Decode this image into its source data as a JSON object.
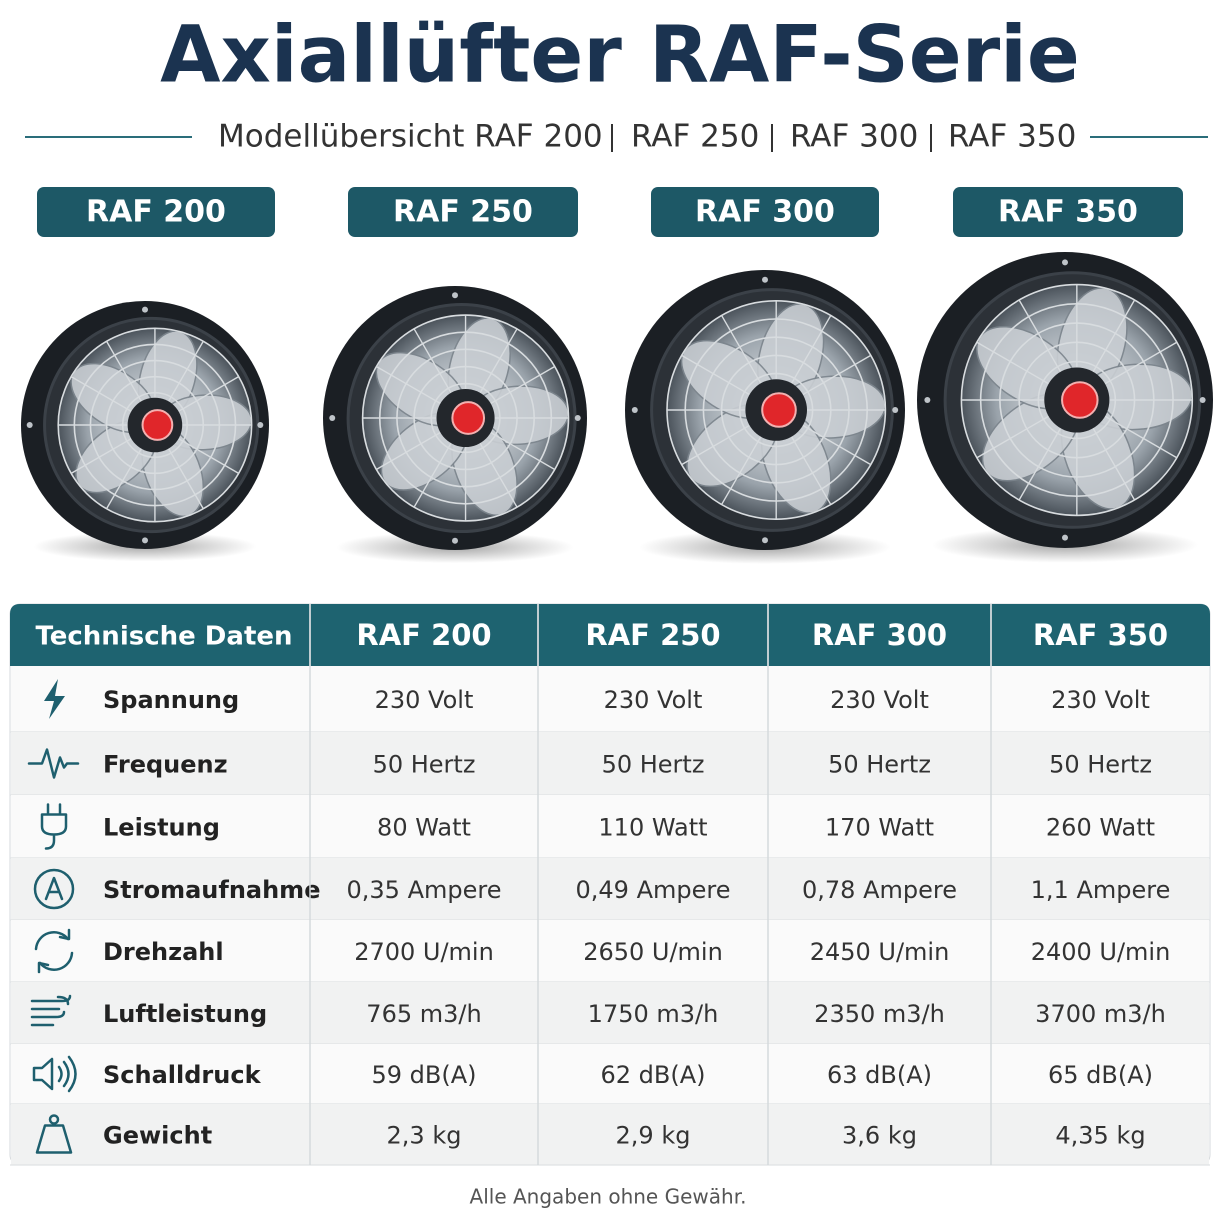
{
  "header": {
    "title": "Axiallüfter RAF-Serie",
    "subtitle": [
      "Modellübersicht RAF 200",
      "RAF 250",
      "RAF 300",
      "RAF 350"
    ]
  },
  "models": [
    "RAF 200",
    "RAF 250",
    "RAF 300",
    "RAF 350"
  ],
  "table": {
    "columns": [
      "Technische Daten",
      "RAF 200",
      "RAF 250",
      "RAF 300",
      "RAF 350"
    ],
    "rows": [
      [
        "Spannung",
        "230 Volt",
        "230 Volt",
        "230 Volt",
        "230 Volt"
      ],
      [
        "Frequenz",
        "50 Hertz",
        "50 Hertz",
        "50 Hertz",
        "50 Hertz"
      ],
      [
        "Leistung",
        "80 Watt",
        "110 Watt",
        "170 Watt",
        "260 Watt"
      ],
      [
        "Stromaufnahme",
        "0,35 Ampere",
        "0,49 Ampere",
        "0,78 Ampere",
        "1,1 Ampere"
      ],
      [
        "Drehzahl",
        "2700 U/min",
        "2650 U/min",
        "2450 U/min",
        "2400 U/min"
      ],
      [
        "Luftleistung",
        "765 m3/h",
        "1750 m3/h",
        "2350 m3/h",
        "3700 m3/h"
      ],
      [
        "Schalldruck",
        "59 dB(A)",
        "62 dB(A)",
        "63 dB(A)",
        "65 dB(A)"
      ],
      [
        "Gewicht",
        "2,3 kg",
        "2,9 kg",
        "3,6 kg",
        "4,35 kg"
      ]
    ]
  },
  "footnote": "Alle Angaben ohne Gewähr."
}
